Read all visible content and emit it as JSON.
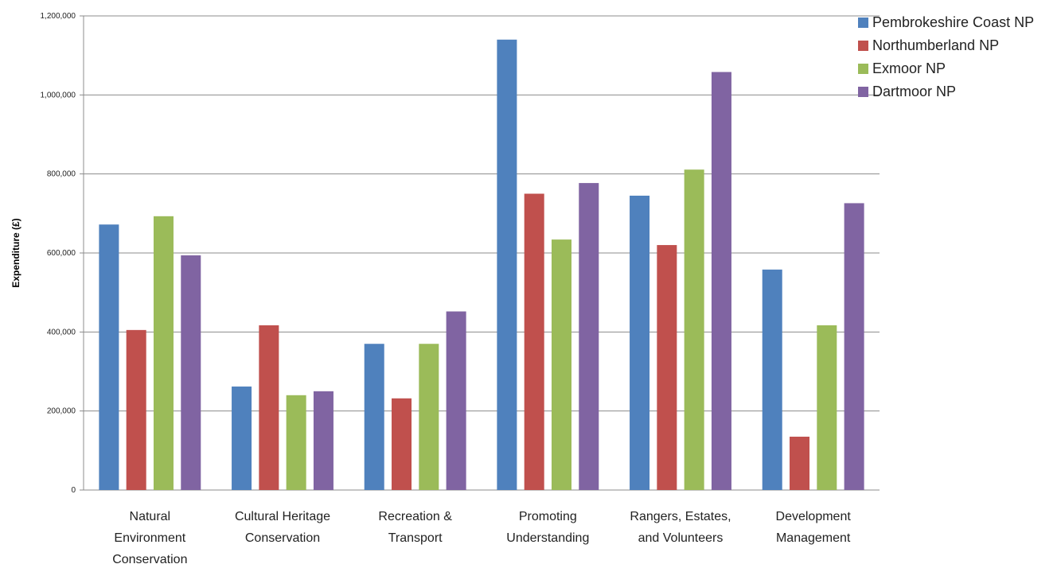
{
  "chart_data": {
    "type": "bar",
    "title": "",
    "xlabel": "",
    "ylabel": "Expenditure (£)",
    "ylim": [
      0,
      1200000
    ],
    "yticks": [
      0,
      200000,
      400000,
      600000,
      800000,
      1000000,
      1200000
    ],
    "ytick_labels": [
      "0",
      "200,000",
      "400,000",
      "600,000",
      "800,000",
      "1,000,000",
      "1,200,000"
    ],
    "grid": true,
    "legend_position": "top-right",
    "categories": [
      [
        "Natural",
        "Environment",
        "Conservation"
      ],
      [
        "Cultural Heritage",
        "Conservation"
      ],
      [
        "Recreation &",
        "Transport"
      ],
      [
        "Promoting",
        "Understanding"
      ],
      [
        "Rangers, Estates,",
        "and Volunteers"
      ],
      [
        "Development",
        "Management"
      ]
    ],
    "series": [
      {
        "name": "Pembrokeshire Coast NP",
        "color": "#4F81BD",
        "values": [
          672000,
          262000,
          370000,
          1140000,
          745000,
          558000
        ]
      },
      {
        "name": "Northumberland NP",
        "color": "#C0504D",
        "values": [
          405000,
          417000,
          232000,
          750000,
          620000,
          135000
        ]
      },
      {
        "name": "Exmoor NP",
        "color": "#9BBB59",
        "values": [
          693000,
          240000,
          370000,
          634000,
          811000,
          417000
        ]
      },
      {
        "name": "Dartmoor NP",
        "color": "#8064A2",
        "values": [
          594000,
          250000,
          452000,
          777000,
          1058000,
          726000
        ]
      }
    ]
  }
}
